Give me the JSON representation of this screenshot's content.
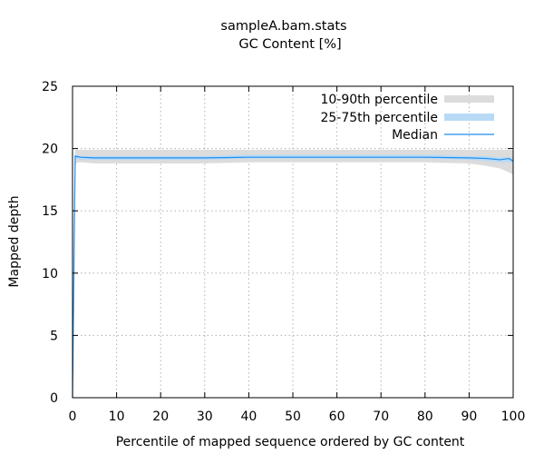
{
  "chart_data": {
    "type": "area",
    "title": "sampleA.bam.stats",
    "subtitle": "GC Content [%]",
    "xlabel": "Percentile of mapped sequence ordered by GC content",
    "ylabel": "Mapped depth",
    "xlim": [
      0,
      100
    ],
    "ylim": [
      0,
      25
    ],
    "xticks": [
      "0",
      "10",
      "20",
      "30",
      "40",
      "50",
      "60",
      "70",
      "80",
      "90",
      "100"
    ],
    "yticks": [
      "0",
      "5",
      "10",
      "15",
      "20",
      "25"
    ],
    "grid": true,
    "legend_position": "top-right",
    "colors": {
      "p10_90": "#dcdcdc",
      "p25_75": "#b8daf6",
      "median": "#1f8ded"
    },
    "series": [
      {
        "name": "10-90th percentile",
        "style": "band",
        "x": [
          0,
          0.6,
          1,
          2,
          5,
          10,
          20,
          30,
          40,
          50,
          60,
          70,
          80,
          90,
          94,
          97,
          99,
          100
        ],
        "low": [
          0,
          18.6,
          18.9,
          18.9,
          18.8,
          18.8,
          18.8,
          18.8,
          18.9,
          18.9,
          18.9,
          18.9,
          18.9,
          18.8,
          18.6,
          18.4,
          18.1,
          17.9
        ],
        "high": [
          0,
          19.9,
          19.9,
          19.9,
          19.9,
          19.9,
          19.9,
          19.9,
          19.9,
          19.9,
          19.9,
          19.9,
          19.9,
          19.9,
          19.9,
          19.9,
          19.9,
          19.9
        ]
      },
      {
        "name": "25-75th percentile",
        "style": "band",
        "x": [
          0,
          0.6,
          1,
          2,
          5,
          10,
          20,
          30,
          40,
          50,
          60,
          70,
          80,
          90,
          94,
          97,
          99,
          100
        ],
        "low": [
          0,
          19.1,
          19.2,
          19.1,
          19.1,
          19.1,
          19.1,
          19.1,
          19.2,
          19.2,
          19.2,
          19.2,
          19.2,
          19.1,
          19.0,
          18.9,
          18.9,
          18.8
        ],
        "high": [
          0,
          19.5,
          19.5,
          19.4,
          19.4,
          19.4,
          19.4,
          19.4,
          19.5,
          19.5,
          19.5,
          19.5,
          19.5,
          19.4,
          19.4,
          19.3,
          19.3,
          19.3
        ]
      },
      {
        "name": "Median",
        "style": "line",
        "x": [
          0,
          0.6,
          1,
          2,
          5,
          10,
          20,
          30,
          40,
          50,
          60,
          70,
          80,
          90,
          94,
          97,
          99,
          100
        ],
        "values": [
          0,
          19.4,
          19.35,
          19.3,
          19.25,
          19.25,
          19.25,
          19.25,
          19.3,
          19.3,
          19.3,
          19.3,
          19.3,
          19.25,
          19.2,
          19.1,
          19.2,
          19.0
        ]
      }
    ]
  }
}
